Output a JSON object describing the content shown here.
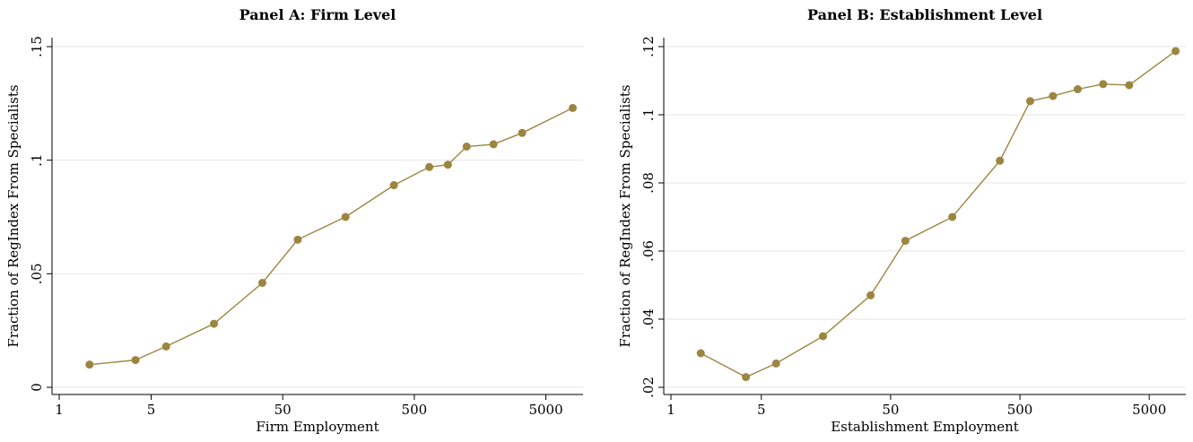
{
  "chart_data": [
    {
      "type": "line",
      "title": "Panel A: Firm Level",
      "xlabel": "Firm Employment",
      "ylabel": "Fraction of RegIndex From Specialists",
      "xscale": "log",
      "xlim": [
        1,
        9000
      ],
      "ylim": [
        0,
        0.15
      ],
      "xticks": [
        1,
        5,
        50,
        500,
        5000
      ],
      "xtick_labels": [
        "1",
        "5",
        "50",
        "500",
        "5000"
      ],
      "yticks": [
        0,
        0.05,
        0.1,
        0.15
      ],
      "ytick_labels": [
        "0",
        ".05",
        ".1",
        ".15"
      ],
      "grid": "horizontal",
      "series": [
        {
          "color": "#9c8540",
          "x": [
            1.7,
            3.8,
            6.5,
            15,
            35,
            65,
            150,
            350,
            650,
            900,
            1250,
            2000,
            3300,
            8000
          ],
          "y": [
            0.01,
            0.012,
            0.018,
            0.028,
            0.046,
            0.065,
            0.075,
            0.089,
            0.097,
            0.098,
            0.106,
            0.107,
            0.112,
            0.123
          ]
        }
      ]
    },
    {
      "type": "line",
      "title": "Panel B: Establishment Level",
      "xlabel": "Establishment Employment",
      "ylabel": "Fraction of RegIndex From Specialists",
      "xscale": "log",
      "xlim": [
        1,
        9000
      ],
      "ylim": [
        0.02,
        0.12
      ],
      "xticks": [
        1,
        5,
        50,
        500,
        5000
      ],
      "xtick_labels": [
        "1",
        "5",
        "50",
        "500",
        "5000"
      ],
      "yticks": [
        0.02,
        0.04,
        0.06,
        0.08,
        0.1,
        0.12
      ],
      "ytick_labels": [
        ".02",
        ".04",
        ".06",
        ".08",
        ".1",
        ".12"
      ],
      "grid": "horizontal",
      "series": [
        {
          "color": "#9c8540",
          "x": [
            1.7,
            3.8,
            6.5,
            15,
            35,
            65,
            150,
            350,
            600,
            900,
            1400,
            2200,
            3500,
            8000
          ],
          "y": [
            0.03,
            0.023,
            0.027,
            0.035,
            0.047,
            0.063,
            0.07,
            0.0865,
            0.104,
            0.1055,
            0.1075,
            0.109,
            0.1087,
            0.1187
          ]
        }
      ]
    }
  ]
}
